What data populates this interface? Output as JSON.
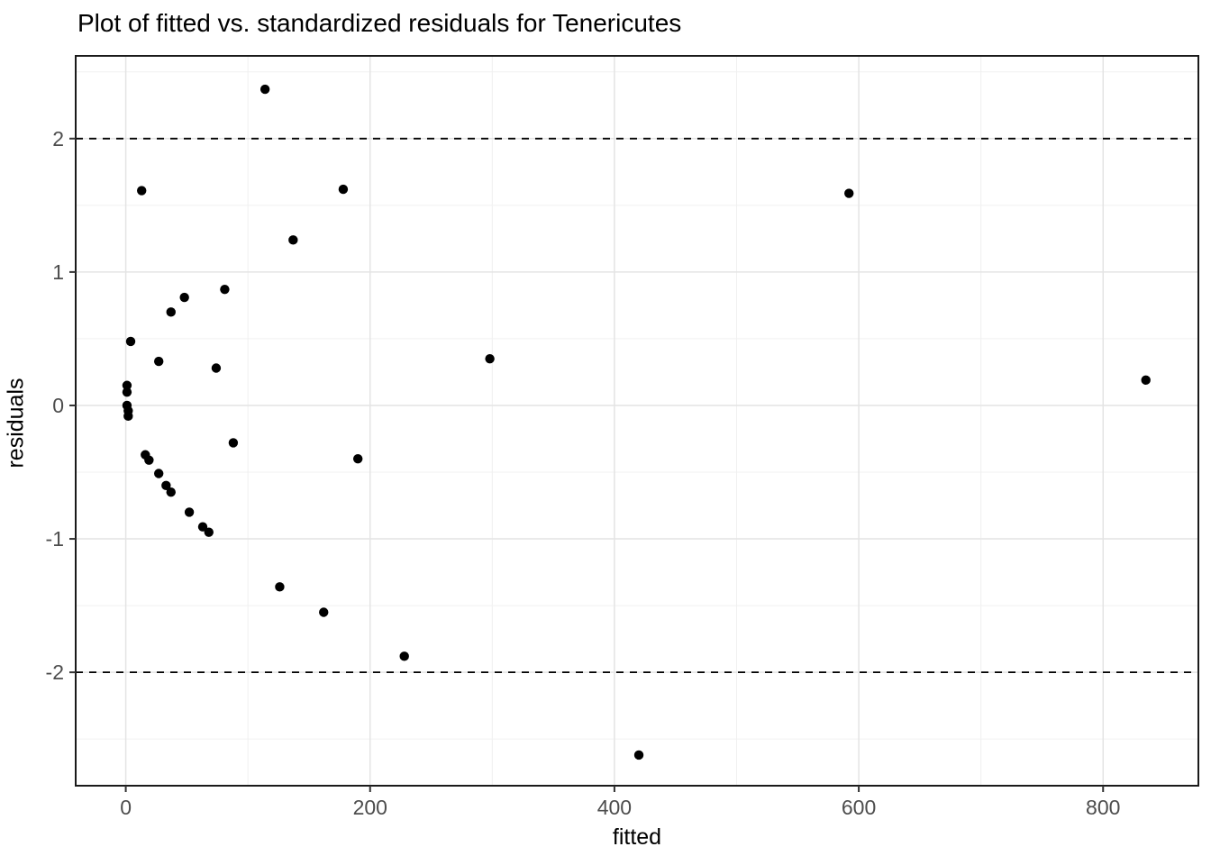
{
  "page": {
    "title": "Plot of fitted vs. standardized residuals for Tenericutes"
  },
  "chart_data": {
    "type": "scatter",
    "title": "Plot of fitted vs. standardized residuals for Tenericutes",
    "xlabel": "fitted",
    "ylabel": "residuals",
    "xlim": [
      -41,
      878
    ],
    "ylim": [
      -2.85,
      2.62
    ],
    "x_ticks": [
      0,
      200,
      400,
      600,
      800
    ],
    "y_ticks": [
      2,
      1,
      0,
      -1,
      -2
    ],
    "x_minor_ticks": [
      100,
      300,
      500,
      700
    ],
    "y_minor_ticks": [
      2.5,
      1.5,
      0.5,
      -0.5,
      -1.5,
      -2.5
    ],
    "grid": true,
    "legend_position": "none",
    "reference_lines": {
      "y_values": [
        2,
        -2
      ],
      "style": "dashed"
    },
    "points": [
      {
        "fitted": 114,
        "residual": 2.37
      },
      {
        "fitted": 13,
        "residual": 1.61
      },
      {
        "fitted": 178,
        "residual": 1.62
      },
      {
        "fitted": 592,
        "residual": 1.59
      },
      {
        "fitted": 137,
        "residual": 1.24
      },
      {
        "fitted": 81,
        "residual": 0.87
      },
      {
        "fitted": 48,
        "residual": 0.81
      },
      {
        "fitted": 37,
        "residual": 0.7
      },
      {
        "fitted": 4,
        "residual": 0.48
      },
      {
        "fitted": 298,
        "residual": 0.35
      },
      {
        "fitted": 27,
        "residual": 0.33
      },
      {
        "fitted": 74,
        "residual": 0.28
      },
      {
        "fitted": 835,
        "residual": 0.19
      },
      {
        "fitted": 1,
        "residual": 0.15
      },
      {
        "fitted": 1,
        "residual": 0.1
      },
      {
        "fitted": 1,
        "residual": 0.0
      },
      {
        "fitted": 2,
        "residual": -0.04
      },
      {
        "fitted": 2,
        "residual": -0.08
      },
      {
        "fitted": 88,
        "residual": -0.28
      },
      {
        "fitted": 16,
        "residual": -0.37
      },
      {
        "fitted": 19,
        "residual": -0.41
      },
      {
        "fitted": 190,
        "residual": -0.4
      },
      {
        "fitted": 27,
        "residual": -0.51
      },
      {
        "fitted": 33,
        "residual": -0.6
      },
      {
        "fitted": 37,
        "residual": -0.65
      },
      {
        "fitted": 52,
        "residual": -0.8
      },
      {
        "fitted": 63,
        "residual": -0.91
      },
      {
        "fitted": 68,
        "residual": -0.95
      },
      {
        "fitted": 126,
        "residual": -1.36
      },
      {
        "fitted": 162,
        "residual": -1.55
      },
      {
        "fitted": 228,
        "residual": -1.88
      },
      {
        "fitted": 420,
        "residual": -2.62
      }
    ]
  },
  "style": {
    "point_color": "#000000",
    "panel_border_color": "#1a1a1a",
    "grid_major_color": "#e4e4e4",
    "grid_minor_color": "#f0f0f0",
    "tick_color": "#333333",
    "tick_label_color": "#4d4d4d",
    "background_color": "#ffffff",
    "reference_line_color": "#000000"
  }
}
